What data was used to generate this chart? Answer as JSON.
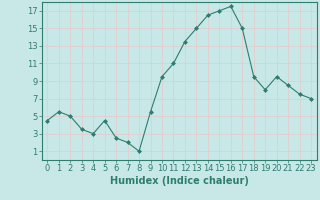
{
  "x": [
    0,
    1,
    2,
    3,
    4,
    5,
    6,
    7,
    8,
    9,
    10,
    11,
    12,
    13,
    14,
    15,
    16,
    17,
    18,
    19,
    20,
    21,
    22,
    23
  ],
  "y": [
    4.5,
    5.5,
    5.0,
    3.5,
    3.0,
    4.5,
    2.5,
    2.0,
    1.0,
    5.5,
    9.5,
    11.0,
    13.5,
    15.0,
    16.5,
    17.0,
    17.5,
    15.0,
    9.5,
    8.0,
    9.5,
    8.5,
    7.5,
    7.0
  ],
  "line_color": "#2e7d6e",
  "marker": "D",
  "marker_size": 2,
  "bg_color": "#c8e8e8",
  "grid_color": "#e8c8c8",
  "xlabel": "Humidex (Indice chaleur)",
  "xlabel_fontsize": 7,
  "xlim": [
    -0.5,
    23.5
  ],
  "ylim": [
    0,
    18
  ],
  "yticks": [
    1,
    3,
    5,
    7,
    9,
    11,
    13,
    15,
    17
  ],
  "xticks": [
    0,
    1,
    2,
    3,
    4,
    5,
    6,
    7,
    8,
    9,
    10,
    11,
    12,
    13,
    14,
    15,
    16,
    17,
    18,
    19,
    20,
    21,
    22,
    23
  ],
  "tick_color": "#2e7d6e",
  "tick_fontsize": 6,
  "spine_color": "#2e7d6e"
}
